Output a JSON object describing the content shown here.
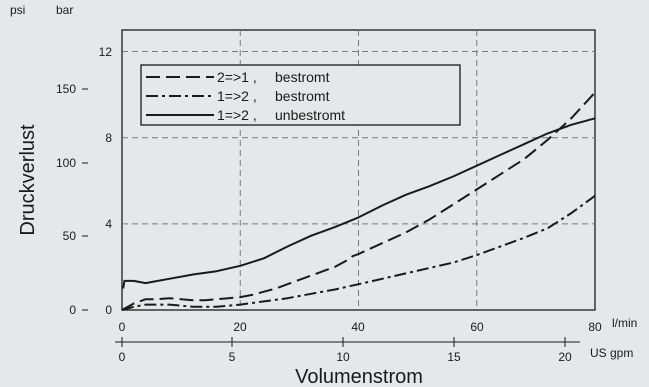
{
  "chart_data": {
    "type": "line",
    "title": "",
    "xlabel": "Volumenstrom",
    "ylabel": "Druckverlust",
    "x_units": {
      "primary": "l/min",
      "secondary": "US gpm"
    },
    "y_units": {
      "bar": "bar",
      "psi": "psi"
    },
    "x_ticks_lmin": [
      "0",
      "20",
      "40",
      "60",
      "80"
    ],
    "x_ticks_gpm": [
      "0",
      "5",
      "10",
      "15",
      "20"
    ],
    "y_ticks_bar": [
      "0",
      "4",
      "8",
      "12"
    ],
    "y_ticks_psi": [
      "0",
      "50",
      "100",
      "150"
    ],
    "xlim": [
      0,
      80
    ],
    "ylim_bar": [
      0,
      13
    ],
    "grid": true,
    "legend_position": "top-left",
    "series": [
      {
        "name": "2=>1 ,   bestromt",
        "legend_code": "2=>1 ,",
        "legend_desc": "bestromt",
        "style": "dashed",
        "x": [
          0,
          2,
          4,
          6,
          8,
          10,
          12,
          14,
          16,
          18,
          20,
          22,
          24,
          26,
          28,
          30,
          32,
          34,
          36,
          38,
          39,
          40,
          44,
          48,
          52,
          56,
          60,
          64,
          68,
          72,
          76,
          80
        ],
        "y": [
          0,
          0.3,
          0.5,
          0.5,
          0.55,
          0.5,
          0.45,
          0.45,
          0.5,
          0.55,
          0.6,
          0.7,
          0.85,
          1.0,
          1.2,
          1.4,
          1.6,
          1.8,
          2.0,
          2.3,
          2.5,
          2.6,
          3.1,
          3.6,
          4.2,
          4.9,
          5.6,
          6.3,
          7.0,
          7.9,
          8.9,
          10.1
        ]
      },
      {
        "name": "1=>2 ,   bestromt",
        "legend_code": "1=>2 ,",
        "legend_desc": "bestromt",
        "style": "dash-dot",
        "x": [
          0,
          2,
          4,
          6,
          8,
          10,
          12,
          14,
          16,
          18,
          20,
          24,
          28,
          32,
          36,
          40,
          44,
          48,
          52,
          56,
          60,
          64,
          68,
          72,
          76,
          80
        ],
        "y": [
          0,
          0.15,
          0.25,
          0.25,
          0.25,
          0.2,
          0.15,
          0.15,
          0.15,
          0.2,
          0.25,
          0.4,
          0.55,
          0.75,
          0.95,
          1.2,
          1.45,
          1.7,
          1.95,
          2.2,
          2.55,
          2.95,
          3.35,
          3.8,
          4.5,
          5.3
        ]
      },
      {
        "name": "1=>2 ,   unbestromt",
        "legend_code": "1=>2 ,",
        "legend_desc": "unbestromt",
        "style": "solid",
        "x": [
          0.2,
          0.4,
          2,
          3,
          4,
          5,
          8,
          12,
          16,
          20,
          24,
          28,
          32,
          36,
          40,
          44,
          48,
          52,
          56,
          60,
          64,
          68,
          72,
          76,
          80
        ],
        "y": [
          1.0,
          1.35,
          1.35,
          1.3,
          1.25,
          1.3,
          1.45,
          1.65,
          1.8,
          2.05,
          2.4,
          2.95,
          3.45,
          3.85,
          4.3,
          4.85,
          5.35,
          5.75,
          6.2,
          6.7,
          7.2,
          7.7,
          8.2,
          8.6,
          8.9
        ]
      }
    ]
  }
}
